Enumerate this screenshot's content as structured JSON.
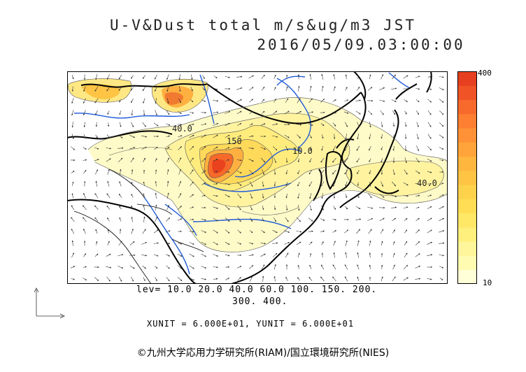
{
  "title": {
    "line1": "U-V&Dust total m/s&ug/m3 JST",
    "line2": "2016/05/09.03:00:00"
  },
  "colorbar": {
    "max_label": "400",
    "min_label": "10",
    "colors": [
      "#ffffd8",
      "#fffbb0",
      "#fff59a",
      "#fff07e",
      "#ffe866",
      "#ffde55",
      "#ffd24c",
      "#ffc444",
      "#ffb63f",
      "#ffa43a",
      "#ff9236",
      "#ff7f32",
      "#f86a2c",
      "#f05426",
      "#e64020"
    ]
  },
  "contour_labels": [
    "40.0",
    "150",
    "10.0",
    "40.0"
  ],
  "legend": {
    "levels_line1": "lev= 10.0 20.0 40.0 60.0 100. 150. 200.",
    "levels_line2": "300. 400.",
    "units": "XUNIT = 6.000E+01, YUNIT = 6.000E+01"
  },
  "credit": "©九州大学応用力学研究所(RIAM)/国立環境研究所(NIES)",
  "colors": {
    "coast": "#000000",
    "river": "#1f5bd8",
    "vector": "#333333"
  }
}
